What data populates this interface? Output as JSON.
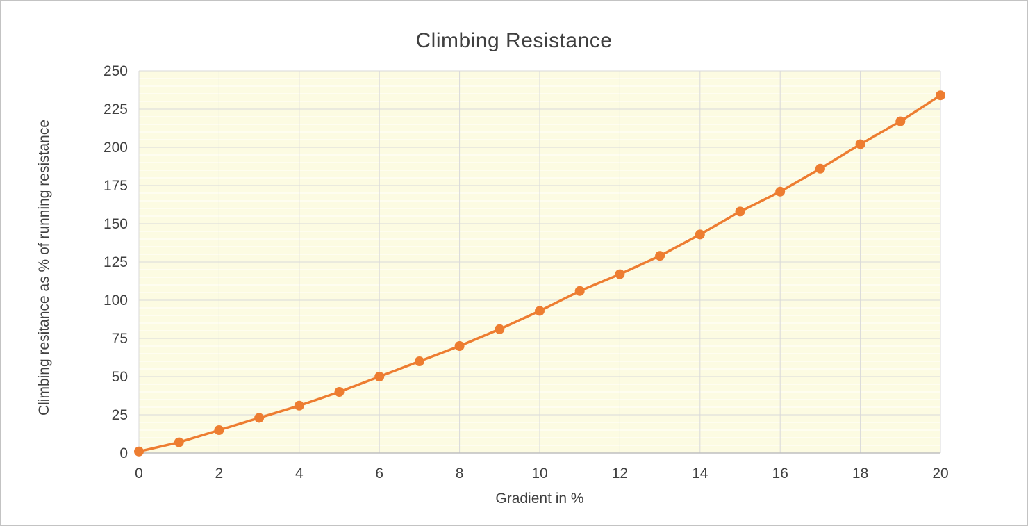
{
  "chart_data": {
    "type": "line",
    "title": "Climbing Resistance",
    "xlabel": "Gradient in %",
    "ylabel": "Climbing resitance as % of running resistance",
    "x": [
      0,
      1,
      2,
      3,
      4,
      5,
      6,
      7,
      8,
      9,
      10,
      11,
      12,
      13,
      14,
      15,
      16,
      17,
      18,
      19,
      20
    ],
    "values": [
      1,
      7,
      15,
      23,
      31,
      40,
      50,
      60,
      70,
      81,
      93,
      106,
      117,
      129,
      143,
      158,
      171,
      186,
      202,
      217,
      234
    ],
    "xlim": [
      0,
      20
    ],
    "ylim": [
      0,
      250
    ],
    "x_ticks": [
      0,
      2,
      4,
      6,
      8,
      10,
      12,
      14,
      16,
      18,
      20
    ],
    "y_ticks": [
      0,
      25,
      50,
      75,
      100,
      125,
      150,
      175,
      200,
      225,
      250
    ],
    "y_minor_step": 5,
    "grid": "vertical major gridlines, horizontal major and minor gridlines",
    "legend": "none",
    "marker_style": "filled circle",
    "colors": {
      "line": "#ED7D31",
      "marker": "#ED7D31",
      "plot_bg": "#FCFBE2",
      "major_gridline": "#D9D9D9",
      "minor_gridline": "#FFFFFF",
      "axis_line": "#BFBFBF",
      "text": "#404040"
    }
  }
}
